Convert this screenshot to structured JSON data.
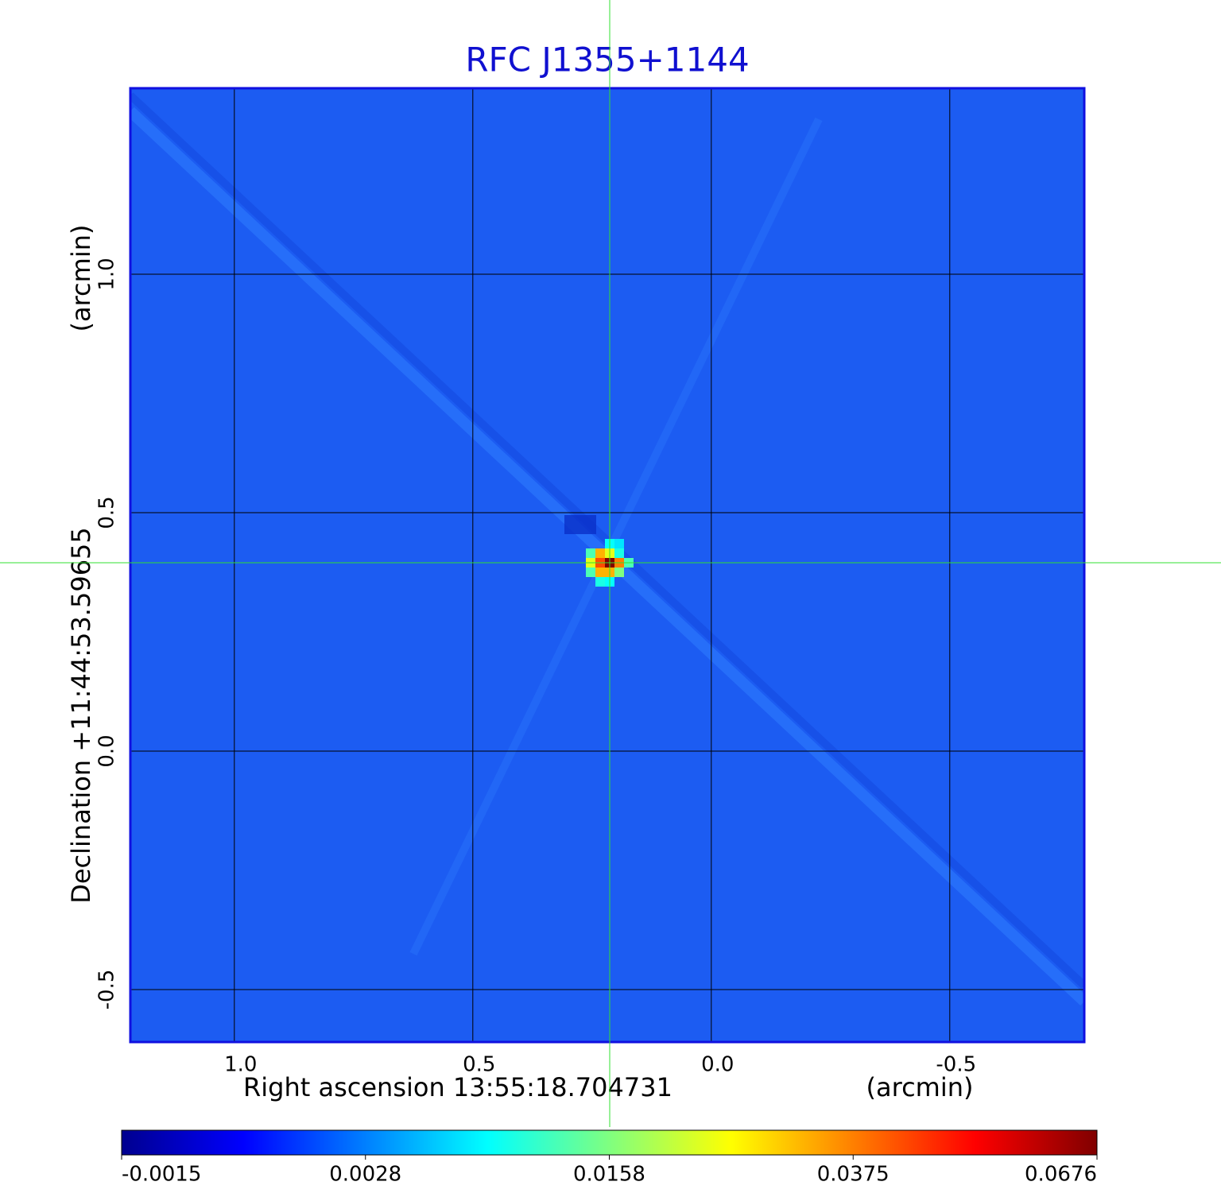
{
  "chart_data": {
    "type": "image",
    "title": "RFC J1355+1144",
    "xlabel": "Right ascension  13:55:18.704731",
    "xunit": "(arcmin)",
    "ylabel": "Declination  +11:44:53.59655",
    "yunit": "(arcmin)",
    "xlim": [
      1.218,
      -0.782
    ],
    "ylim": [
      -0.61,
      1.39
    ],
    "xticks": [
      {
        "value": 1,
        "label": "1.0"
      },
      0.5,
      {
        "value": 0,
        "label": "0.0"
      },
      -0.5
    ],
    "yticks": [
      -0.5,
      {
        "value": 0,
        "label": "0.0"
      },
      0.5,
      {
        "value": 1,
        "label": "1.0"
      }
    ],
    "grid": true,
    "colormap": "jet",
    "colorbar_ticks": [
      -0.0015,
      0.0028,
      0.0158,
      0.0375,
      0.0676
    ],
    "source": {
      "x": 0.213,
      "y": 0.395,
      "peak": 0.0676
    }
  }
}
